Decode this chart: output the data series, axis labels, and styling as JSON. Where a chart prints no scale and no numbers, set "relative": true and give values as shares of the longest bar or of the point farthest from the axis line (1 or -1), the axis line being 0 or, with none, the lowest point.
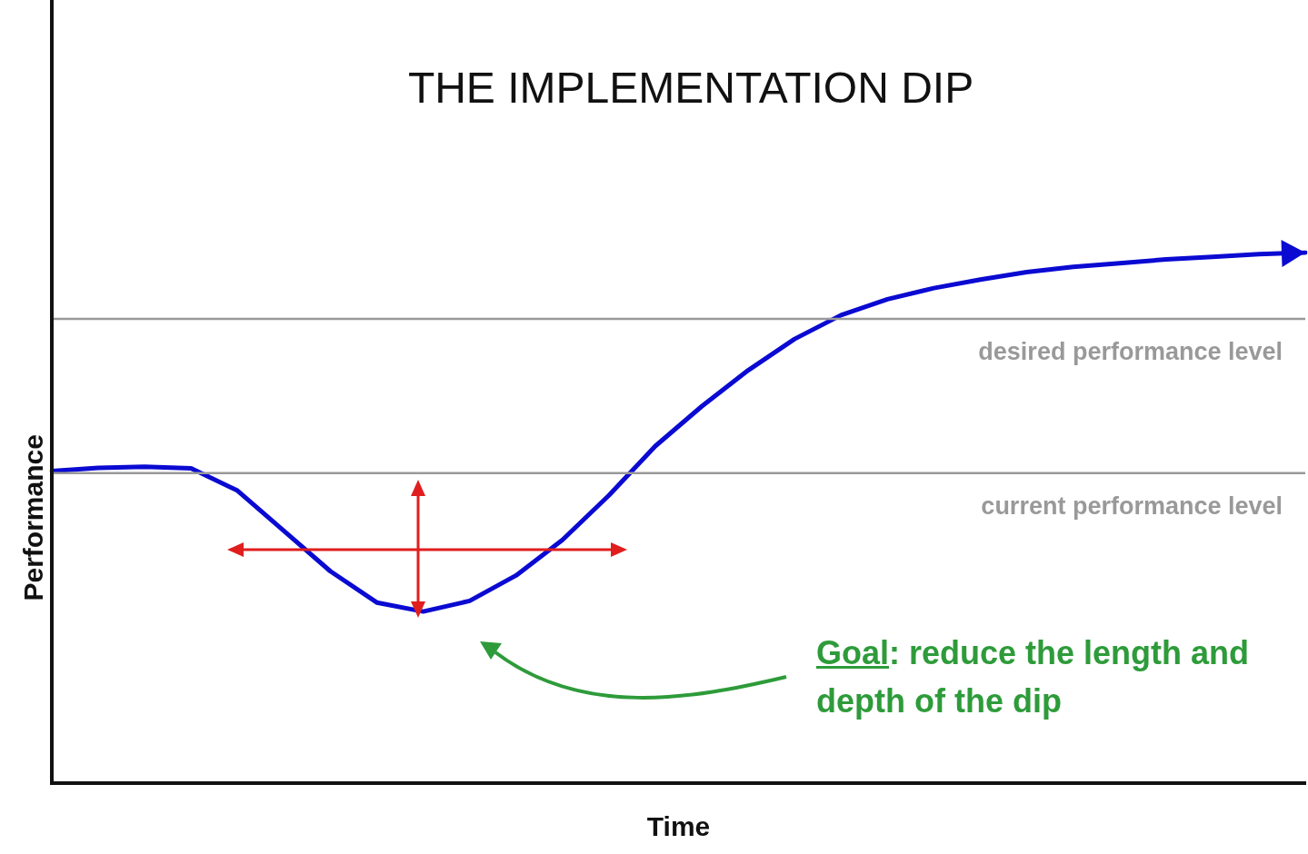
{
  "chart_data": {
    "type": "line",
    "title": "THE IMPLEMENTATION DIP",
    "xlabel": "Time",
    "ylabel": "Performance",
    "relative": true,
    "categories": [
      null,
      null,
      null,
      null,
      null,
      null,
      null,
      null,
      null,
      null,
      null,
      null,
      null,
      null,
      null,
      null,
      null,
      null,
      null,
      null,
      null,
      null,
      null,
      null,
      null,
      null,
      null,
      null
    ],
    "series": [
      {
        "color": "#0a0ad2",
        "values": [
          0.588,
          0.594,
          0.596,
          0.593,
          0.551,
          0.475,
          0.399,
          0.34,
          0.323,
          0.343,
          0.391,
          0.458,
          0.542,
          0.635,
          0.71,
          0.778,
          0.837,
          0.882,
          0.912,
          0.933,
          0.949,
          0.963,
          0.973,
          0.98,
          0.987,
          0.992,
          0.997,
          1
        ]
      }
    ],
    "ref_lines": [
      {
        "axis": "y",
        "value": 0.584,
        "label": "current performance level",
        "color": "#999999"
      },
      {
        "axis": "y",
        "value": 0.875,
        "label": "desired performance level",
        "color": "#999999"
      }
    ],
    "annotations": [
      "Goal: reduce the length and depth of the dip"
    ],
    "legend": false,
    "marker": "none",
    "line_style": "solid",
    "grid": false
  }
}
